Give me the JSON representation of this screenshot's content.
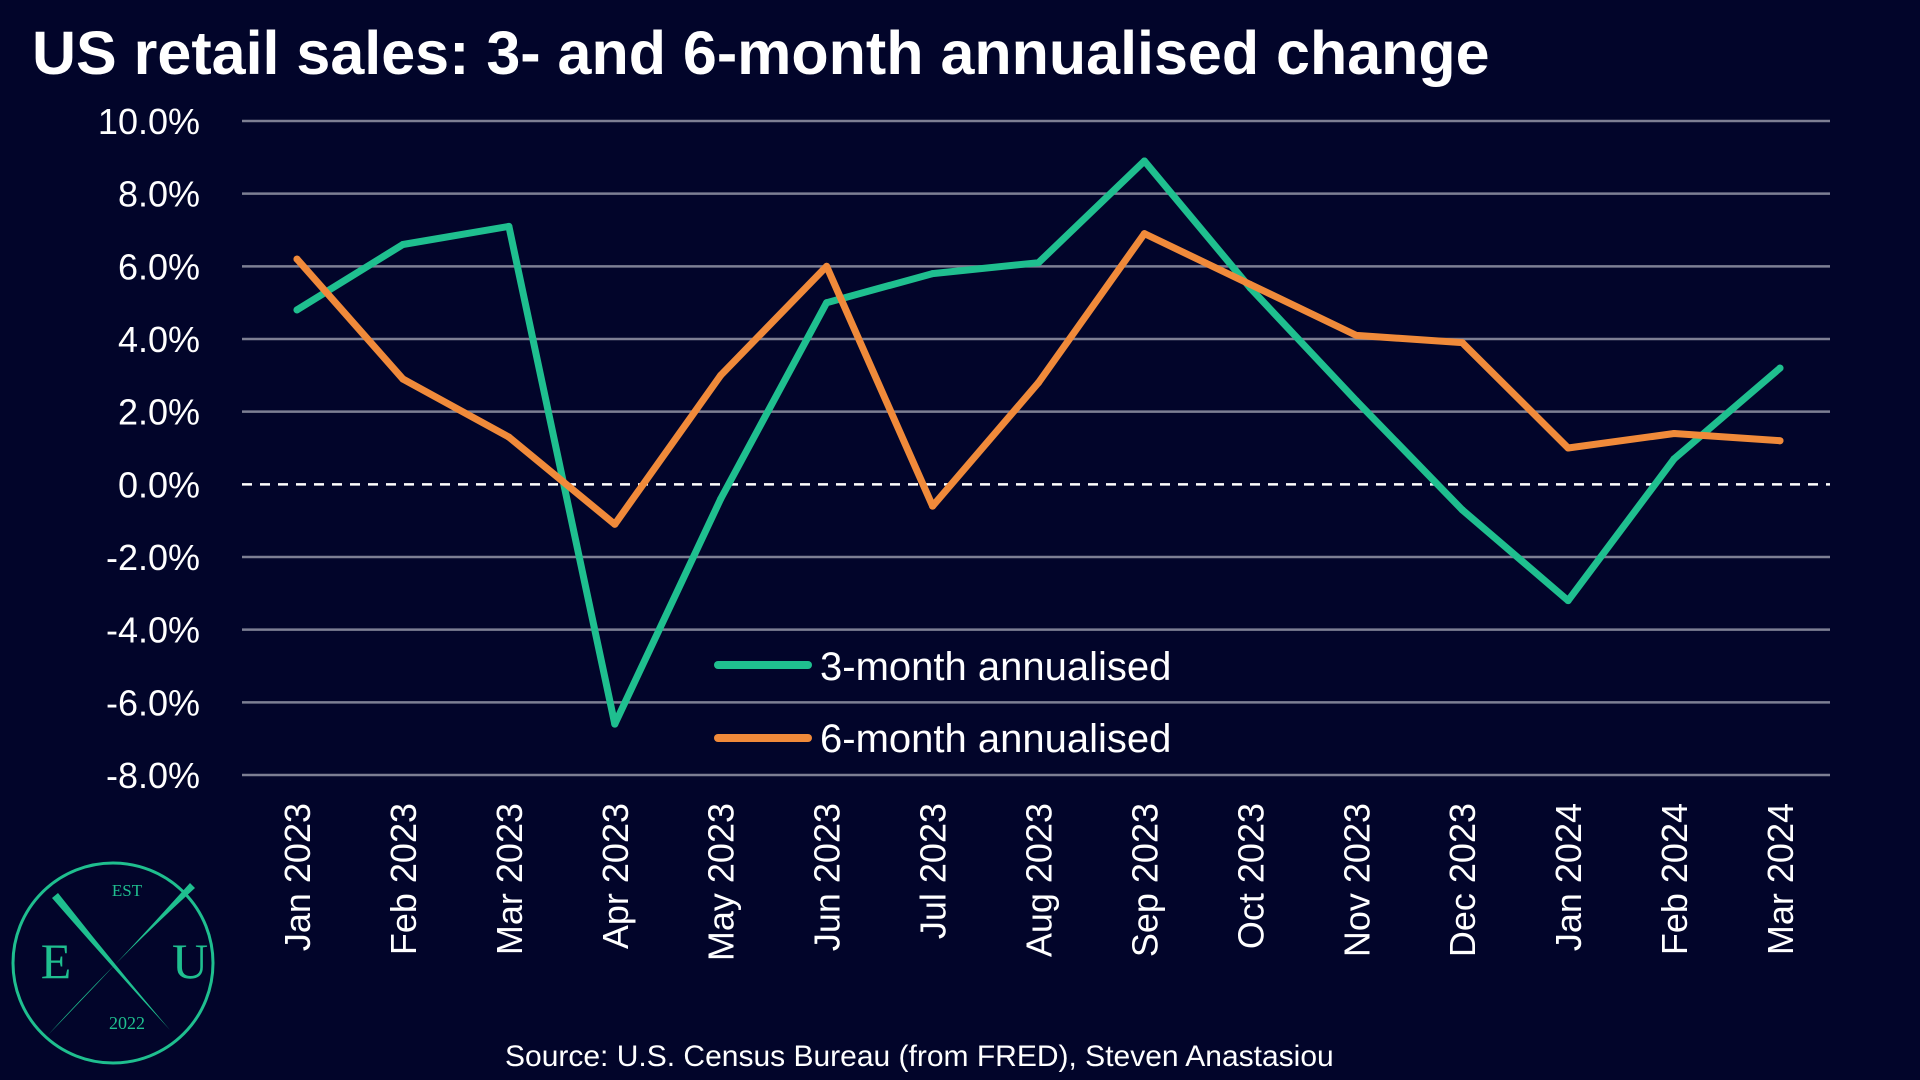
{
  "colors": {
    "background": "#02052a",
    "grid": "#7d7f93",
    "zero_line": "#ffffff",
    "series_3m": "#1fbf8f",
    "series_6m": "#f08a3a",
    "logo": "#1fbf8f"
  },
  "logo": {
    "top_text": "EST",
    "left_letter": "E",
    "right_letter": "U",
    "bottom_text": "2022"
  },
  "chart_data": {
    "type": "line",
    "title": "US retail sales: 3- and 6-month annualised change",
    "xlabel": "",
    "ylabel": "",
    "categories": [
      "Jan 2023",
      "Feb 2023",
      "Mar 2023",
      "Apr 2023",
      "May 2023",
      "Jun 2023",
      "Jul 2023",
      "Aug 2023",
      "Sep 2023",
      "Oct 2023",
      "Nov 2023",
      "Dec 2023",
      "Jan 2024",
      "Feb 2024",
      "Mar 2024"
    ],
    "ylim": [
      -8,
      10
    ],
    "ytick_values": [
      10,
      8,
      6,
      4,
      2,
      0,
      -2,
      -4,
      -6,
      -8
    ],
    "ytick_labels": [
      "10.0%",
      "8.0%",
      "6.0%",
      "4.0%",
      "2.0%",
      "0.0%",
      "-2.0%",
      "-4.0%",
      "-6.0%",
      "-8.0%"
    ],
    "grid": true,
    "zero_line": "dashed",
    "legend_position": "bottom-center",
    "series": [
      {
        "name": "3-month annualised",
        "color": "#1fbf8f",
        "values": [
          4.8,
          6.6,
          7.1,
          -6.6,
          -0.4,
          5.0,
          5.8,
          6.1,
          8.9,
          5.4,
          2.3,
          -0.7,
          -3.2,
          0.7,
          3.2
        ]
      },
      {
        "name": "6-month annualised",
        "color": "#f08a3a",
        "values": [
          6.2,
          2.9,
          1.3,
          -1.1,
          3.0,
          6.0,
          -0.6,
          2.8,
          6.9,
          5.5,
          4.1,
          3.9,
          1.0,
          1.4,
          1.2
        ]
      }
    ],
    "source": "Source: U.S. Census Bureau (from FRED), Steven Anastasiou"
  }
}
